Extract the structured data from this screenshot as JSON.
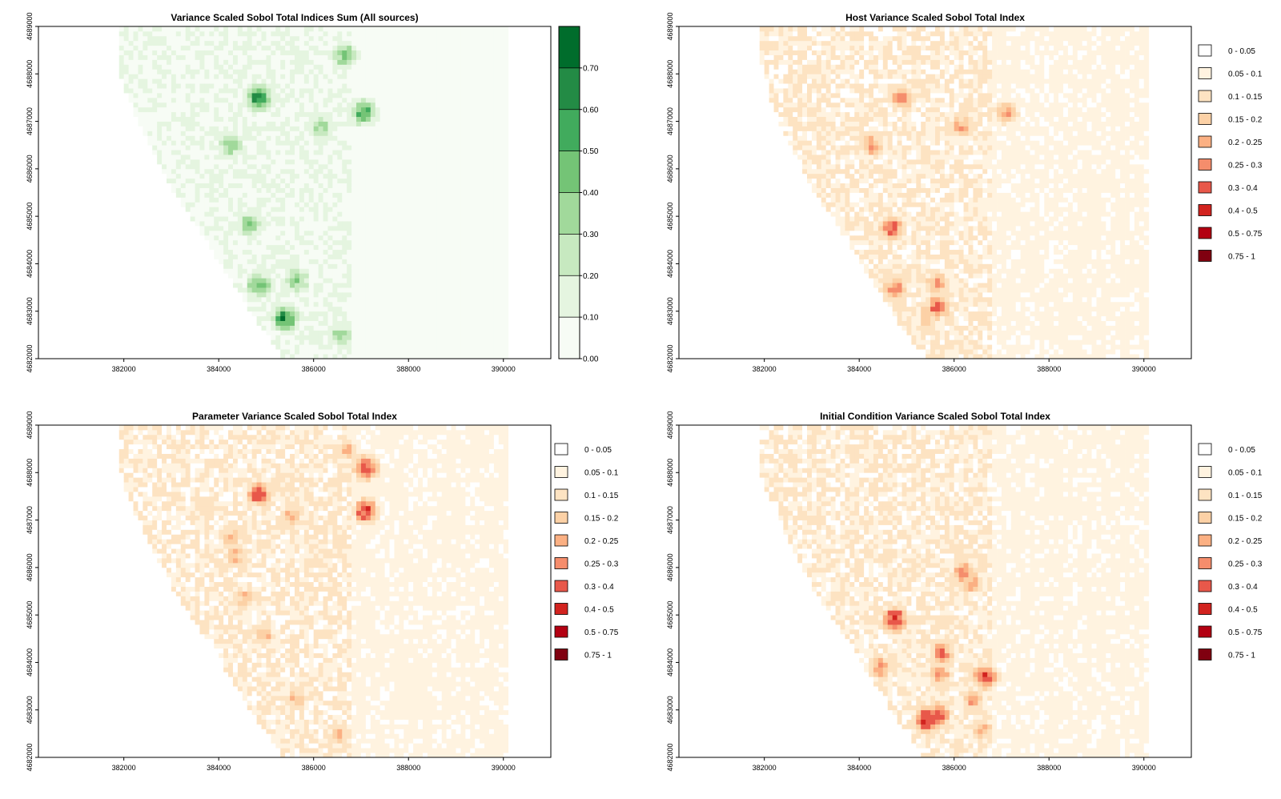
{
  "chart_data": [
    {
      "id": "sum",
      "type": "heatmap",
      "title": "Variance Scaled Sobol Total Indices Sum (All sources)",
      "xlim": [
        380200,
        391000
      ],
      "ylim": [
        4682000,
        4689000
      ],
      "x_ticks": [
        "382000",
        "384000",
        "386000",
        "388000",
        "390000"
      ],
      "y_ticks": [
        "4682000",
        "4683000",
        "4684000",
        "4685000",
        "4686000",
        "4687000",
        "4688000",
        "4689000"
      ],
      "legend": {
        "kind": "colorbar",
        "range": [
          0,
          0.8
        ],
        "breaks": [
          0,
          0.1,
          0.2,
          0.3,
          0.4,
          0.5,
          0.6,
          0.7
        ],
        "labels": [
          "0.00",
          "0.10",
          "0.20",
          "0.30",
          "0.40",
          "0.50",
          "0.60",
          "0.70"
        ],
        "colors": [
          "#f7fcf5",
          "#e5f5e0",
          "#c7e9c0",
          "#a1d99b",
          "#74c476",
          "#41ab5d",
          "#238b45",
          "#006d2c",
          "#00441b"
        ]
      },
      "hotspots": [
        {
          "x": 384800,
          "y": 4687450,
          "v": 0.75
        },
        {
          "x": 386600,
          "y": 4688350,
          "v": 0.5
        },
        {
          "x": 387000,
          "y": 4687150,
          "v": 0.65
        },
        {
          "x": 384200,
          "y": 4686450,
          "v": 0.45
        },
        {
          "x": 384600,
          "y": 4684800,
          "v": 0.5
        },
        {
          "x": 385350,
          "y": 4682800,
          "v": 0.75
        },
        {
          "x": 384800,
          "y": 4683500,
          "v": 0.55
        },
        {
          "x": 386500,
          "y": 4682450,
          "v": 0.4
        },
        {
          "x": 385600,
          "y": 4683600,
          "v": 0.45
        },
        {
          "x": 386100,
          "y": 4686850,
          "v": 0.4
        }
      ]
    },
    {
      "id": "host",
      "type": "heatmap",
      "title": "Host Variance Scaled Sobol Total Index",
      "xlim": [
        380200,
        391000
      ],
      "ylim": [
        4682000,
        4689000
      ],
      "x_ticks": [
        "382000",
        "384000",
        "386000",
        "388000",
        "390000"
      ],
      "y_ticks": [
        "4682000",
        "4683000",
        "4684000",
        "4685000",
        "4686000",
        "4687000",
        "4688000",
        "4689000"
      ],
      "legend": {
        "kind": "classes",
        "labels": [
          "0 - 0.05",
          "0.05 - 0.1",
          "0.1 - 0.15",
          "0.15 - 0.2",
          "0.2 - 0.25",
          "0.25 - 0.3",
          "0.3 - 0.4",
          "0.4 - 0.5",
          "0.5 - 0.75",
          "0.75 - 1"
        ],
        "colors": [
          "#ffffff",
          "#fff3e0",
          "#fde3c2",
          "#fcd1a6",
          "#fbb083",
          "#f58d6c",
          "#e8584a",
          "#d2231f",
          "#b30012",
          "#800010"
        ]
      },
      "hotspots": [
        {
          "x": 384850,
          "y": 4687450,
          "v": 0.35
        },
        {
          "x": 384200,
          "y": 4686450,
          "v": 0.3
        },
        {
          "x": 384650,
          "y": 4684700,
          "v": 0.4
        },
        {
          "x": 384700,
          "y": 4683450,
          "v": 0.35
        },
        {
          "x": 385600,
          "y": 4683050,
          "v": 0.4
        },
        {
          "x": 385600,
          "y": 4683550,
          "v": 0.3
        },
        {
          "x": 386100,
          "y": 4686850,
          "v": 0.3
        },
        {
          "x": 387050,
          "y": 4687150,
          "v": 0.3
        },
        {
          "x": 385400,
          "y": 4682850,
          "v": 0.25
        }
      ]
    },
    {
      "id": "param",
      "type": "heatmap",
      "title": "Parameter Variance Scaled Sobol Total Index",
      "xlim": [
        380200,
        391000
      ],
      "ylim": [
        4682000,
        4689000
      ],
      "x_ticks": [
        "382000",
        "384000",
        "386000",
        "388000",
        "390000"
      ],
      "y_ticks": [
        "4682000",
        "4683000",
        "4684000",
        "4685000",
        "4686000",
        "4687000",
        "4688000",
        "4689000"
      ],
      "legend": {
        "kind": "classes",
        "labels": [
          "0 - 0.05",
          "0.05 - 0.1",
          "0.1 - 0.15",
          "0.15 - 0.2",
          "0.2 - 0.25",
          "0.25 - 0.3",
          "0.3 - 0.4",
          "0.4 - 0.5",
          "0.5 - 0.75",
          "0.75 - 1"
        ],
        "colors": [
          "#ffffff",
          "#fff3e0",
          "#fde3c2",
          "#fcd1a6",
          "#fbb083",
          "#f58d6c",
          "#e8584a",
          "#d2231f",
          "#b30012",
          "#800010"
        ]
      },
      "hotspots": [
        {
          "x": 384800,
          "y": 4687500,
          "v": 0.45
        },
        {
          "x": 387050,
          "y": 4688050,
          "v": 0.45
        },
        {
          "x": 387050,
          "y": 4687150,
          "v": 0.45
        },
        {
          "x": 386650,
          "y": 4688450,
          "v": 0.25
        },
        {
          "x": 384200,
          "y": 4686600,
          "v": 0.25
        },
        {
          "x": 384300,
          "y": 4686200,
          "v": 0.25
        },
        {
          "x": 384500,
          "y": 4685300,
          "v": 0.25
        },
        {
          "x": 384900,
          "y": 4684550,
          "v": 0.25
        },
        {
          "x": 385600,
          "y": 4683200,
          "v": 0.25
        },
        {
          "x": 385500,
          "y": 4687050,
          "v": 0.25
        },
        {
          "x": 386500,
          "y": 4682450,
          "v": 0.25
        }
      ]
    },
    {
      "id": "init",
      "type": "heatmap",
      "title": "Initial Condition Variance Scaled Sobol Total Index",
      "xlim": [
        380200,
        391000
      ],
      "ylim": [
        4682000,
        4689000
      ],
      "x_ticks": [
        "382000",
        "384000",
        "386000",
        "388000",
        "390000"
      ],
      "y_ticks": [
        "4682000",
        "4683000",
        "4684000",
        "4685000",
        "4686000",
        "4687000",
        "4688000",
        "4689000"
      ],
      "legend": {
        "kind": "classes",
        "labels": [
          "0 - 0.05",
          "0.05 - 0.1",
          "0.1 - 0.15",
          "0.15 - 0.2",
          "0.2 - 0.25",
          "0.25 - 0.3",
          "0.3 - 0.4",
          "0.4 - 0.5",
          "0.5 - 0.75",
          "0.75 - 1"
        ],
        "colors": [
          "#ffffff",
          "#fff3e0",
          "#fde3c2",
          "#fcd1a6",
          "#fbb083",
          "#f58d6c",
          "#e8584a",
          "#d2231f",
          "#b30012",
          "#800010"
        ]
      },
      "hotspots": [
        {
          "x": 384700,
          "y": 4684850,
          "v": 0.5
        },
        {
          "x": 385400,
          "y": 4682750,
          "v": 0.55
        },
        {
          "x": 385600,
          "y": 4682850,
          "v": 0.4
        },
        {
          "x": 385700,
          "y": 4684150,
          "v": 0.35
        },
        {
          "x": 386600,
          "y": 4683650,
          "v": 0.45
        },
        {
          "x": 386150,
          "y": 4685850,
          "v": 0.35
        },
        {
          "x": 386300,
          "y": 4685650,
          "v": 0.3
        },
        {
          "x": 384400,
          "y": 4683850,
          "v": 0.3
        },
        {
          "x": 385650,
          "y": 4683700,
          "v": 0.3
        },
        {
          "x": 386350,
          "y": 4683150,
          "v": 0.3
        },
        {
          "x": 386550,
          "y": 4682550,
          "v": 0.25
        }
      ]
    }
  ]
}
